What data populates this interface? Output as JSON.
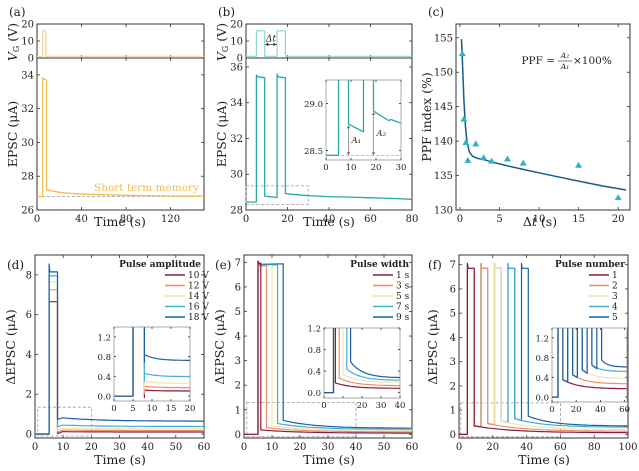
{
  "figure": {
    "colors": {
      "orange": "#F2BD54",
      "orange_light": "#F7D59A",
      "teal": "#2CA7A7",
      "teal_light": "#8FD6D4",
      "navy": "#1B5A86",
      "cyan_marker": "#29B6C8",
      "dash": "#9A9A9A",
      "frame": "#333333",
      "s10": "#8E1B3A",
      "s12": "#E9916C",
      "s14": "#F4E3AE",
      "s16": "#43AEDC",
      "s18": "#1D5F9E"
    }
  },
  "chart_data": [
    {
      "panel": "(a)",
      "type": "line",
      "title": "",
      "xlabel": "Time (s)",
      "xlim": [
        0,
        150
      ],
      "xticks": [
        0,
        40,
        80,
        120
      ],
      "top": {
        "ylabel": "V_G (V)",
        "ylim": [
          0,
          20
        ],
        "yticks": [
          0,
          10,
          20
        ],
        "series": [
          {
            "name": "V_G",
            "x": [
              0,
              5,
              5,
              8,
              8,
              150
            ],
            "y": [
              1,
              1,
              16,
              16,
              1,
              1
            ]
          }
        ]
      },
      "bottom": {
        "ylabel": "EPSC (μA)",
        "ylim": [
          26,
          35
        ],
        "yticks": [
          26,
          28,
          30,
          32,
          34
        ],
        "series": [
          {
            "name": "EPSC",
            "x": [
              0,
              5,
              5,
              5.6,
              8.5,
              8.5,
              12,
              20,
              30,
              45,
              60,
              80,
              100,
              120,
              150
            ],
            "y": [
              26.8,
              26.8,
              33.85,
              33.75,
              33.7,
              27.2,
              27.15,
              27.05,
              26.98,
              26.93,
              26.9,
              26.87,
              26.85,
              26.83,
              26.82
            ]
          }
        ],
        "baseline": 26.8,
        "annotation": "Short term memory"
      }
    },
    {
      "panel": "(b)",
      "type": "line",
      "xlabel": "Time (s)",
      "xlim": [
        0,
        80
      ],
      "xticks": [
        0,
        20,
        40,
        60,
        80
      ],
      "top": {
        "ylabel": "V_G (V)",
        "ylim": [
          0,
          20
        ],
        "yticks": [
          0,
          10,
          20
        ],
        "annotation": "Δt",
        "series": [
          {
            "name": "V_G",
            "x": [
              0,
              5,
              5,
              9,
              9,
              15,
              15,
              19,
              19,
              80
            ],
            "y": [
              1,
              1,
              16,
              16,
              1,
              1,
              16,
              16,
              1,
              1
            ]
          }
        ]
      },
      "bottom": {
        "ylabel": "EPSC (μA)",
        "ylim": [
          28,
          36.5
        ],
        "yticks": [
          28,
          30,
          32,
          34,
          36
        ],
        "series": [
          {
            "name": "EPSC",
            "x": [
              0,
              5,
              5,
              5.5,
              9,
              9,
              12,
              15,
              15,
              15.5,
              19,
              19,
              22,
              30,
              40,
              50,
              60,
              70,
              80
            ],
            "y": [
              28.45,
              28.45,
              35.55,
              35.45,
              35.4,
              28.78,
              28.74,
              28.7,
              35.6,
              35.45,
              35.4,
              28.92,
              28.88,
              28.8,
              28.75,
              28.72,
              28.68,
              28.65,
              28.6
            ]
          }
        ],
        "zoom_box": {
          "x": [
            0,
            30
          ],
          "y": [
            28.3,
            29.35
          ]
        }
      },
      "inset": {
        "xlim": [
          0,
          30
        ],
        "ylim": [
          28.4,
          29.25
        ],
        "xticks": [
          0,
          10,
          20,
          30
        ],
        "yticks": [
          28.5,
          29.0
        ],
        "ytick_labels": [
          "28.5",
          "29.0"
        ],
        "labels": [
          "A₁",
          "A₂"
        ],
        "series": [
          {
            "name": "EPSC",
            "x": [
              0,
              5,
              5,
              9,
              9,
              12,
              15,
              15,
              19,
              19,
              22,
              25,
              26,
              30
            ],
            "y": [
              28.45,
              28.45,
              29.3,
              29.3,
              28.78,
              28.74,
              28.7,
              29.3,
              29.3,
              28.92,
              28.87,
              28.82,
              28.83,
              28.79
            ]
          }
        ],
        "baseline": 28.45
      }
    },
    {
      "panel": "(c)",
      "type": "scatter",
      "xlabel": "Δt (s)",
      "ylabel": "PPF index (%)",
      "xlim": [
        -0.5,
        21.5
      ],
      "ylim": [
        130,
        157
      ],
      "xticks": [
        0,
        5,
        10,
        15,
        20
      ],
      "yticks": [
        130,
        135,
        140,
        145,
        150,
        155
      ],
      "annotation": "PPF = A₂/A₁ × 100%",
      "points": {
        "x": [
          0.3,
          0.5,
          0.75,
          1,
          2,
          3,
          4,
          6,
          8,
          15,
          20
        ],
        "y": [
          152.7,
          143.2,
          139.8,
          137.2,
          139.6,
          137.6,
          137.1,
          137.4,
          136.8,
          136.5,
          131.8
        ]
      },
      "fit": {
        "x": [
          0.2,
          0.35,
          0.5,
          0.7,
          0.9,
          1.2,
          1.6,
          2.2,
          3,
          4,
          6,
          8,
          10,
          12,
          15,
          18,
          21
        ],
        "y": [
          154.8,
          150.5,
          146.0,
          142.0,
          139.8,
          138.4,
          137.8,
          137.5,
          137.3,
          137.0,
          136.4,
          135.9,
          135.4,
          134.9,
          134.2,
          133.5,
          132.9
        ]
      }
    },
    {
      "panel": "(d)",
      "type": "line",
      "xlabel": "Time (s)",
      "ylabel": "ΔEPSC (μA)",
      "xlim": [
        0,
        60
      ],
      "ylim": [
        -0.2,
        9
      ],
      "xticks": [
        0,
        10,
        20,
        30,
        40,
        50,
        60
      ],
      "yticks": [
        0,
        2,
        4,
        6,
        8
      ],
      "legend": {
        "title": "Pulse amplitude",
        "position": "top-right"
      },
      "zoom_box": {
        "x": [
          1,
          20
        ],
        "y": [
          -0.1,
          1.35
        ]
      },
      "series": [
        {
          "name": "10 V",
          "peak": 6.65,
          "rest": 0.12,
          "end": 0.1
        },
        {
          "name": "12 V",
          "peak": 7.25,
          "rest": 0.2,
          "end": 0.17
        },
        {
          "name": "14 V",
          "peak": 7.65,
          "rest": 0.3,
          "end": 0.25
        },
        {
          "name": "16 V",
          "peak": 7.95,
          "rest": 0.46,
          "end": 0.38
        },
        {
          "name": "18 V",
          "peak": 8.15,
          "rest": 0.84,
          "end": 0.65
        }
      ],
      "pulse": {
        "start": 5,
        "end": 8
      },
      "inset": {
        "xlim": [
          0,
          20
        ],
        "ylim": [
          -0.1,
          1.4
        ],
        "xticks": [
          0,
          5,
          10,
          15,
          20
        ],
        "yticks": [
          0.0,
          0.4,
          0.8,
          1.2
        ],
        "ytick_labels": [
          "0.0",
          "0.4",
          "0.8",
          "1.2"
        ]
      }
    },
    {
      "panel": "(e)",
      "type": "line",
      "xlabel": "Time (s)",
      "ylabel": "ΔEPSC (μA)",
      "xlim": [
        0,
        60
      ],
      "ylim": [
        -0.15,
        7.3
      ],
      "xticks": [
        0,
        10,
        20,
        30,
        40,
        50,
        60
      ],
      "yticks": [
        0,
        1,
        2,
        3,
        4,
        5,
        6,
        7
      ],
      "legend": {
        "title": "Pulse width",
        "position": "top-right"
      },
      "zoom_box": {
        "x": [
          1,
          40
        ],
        "y": [
          -0.1,
          1.3
        ]
      },
      "series": [
        {
          "name": "1 s",
          "width": 1,
          "peak": 6.95,
          "rest": 0.18,
          "end": 0.05
        },
        {
          "name": "3 s",
          "width": 3,
          "peak": 6.85,
          "rest": 0.27,
          "end": 0.1
        },
        {
          "name": "5 s",
          "width": 5,
          "peak": 6.85,
          "rest": 0.34,
          "end": 0.16
        },
        {
          "name": "7 s",
          "width": 7,
          "peak": 6.88,
          "rest": 0.44,
          "end": 0.2
        },
        {
          "name": "9 s",
          "width": 9,
          "peak": 6.92,
          "rest": 0.57,
          "end": 0.25
        }
      ],
      "pulse_start": 5,
      "inset": {
        "xlim": [
          0,
          40
        ],
        "ylim": [
          -0.1,
          1.2
        ],
        "xticks": [
          0,
          10,
          20,
          30,
          40
        ],
        "xtick_labels": [
          "0",
          "",
          "20",
          "30",
          "40"
        ],
        "yticks": [
          0.0,
          0.4,
          0.8,
          1.2
        ],
        "ytick_labels": [
          "0.0",
          "0.4",
          "0.8",
          "1.2"
        ]
      }
    },
    {
      "panel": "(f)",
      "type": "line",
      "xlabel": "Time (s)",
      "ylabel": "ΔEPSC (μA)",
      "xlim": [
        0,
        100
      ],
      "ylim": [
        -0.15,
        7.4
      ],
      "xticks": [
        0,
        20,
        40,
        60,
        80,
        100
      ],
      "yticks": [
        0,
        1,
        2,
        3,
        4,
        5,
        6,
        7
      ],
      "legend": {
        "title": "Pulse number",
        "position": "top-right"
      },
      "zoom_box": {
        "x": [
          1,
          60
        ],
        "y": [
          -0.1,
          1.3
        ]
      },
      "series": [
        {
          "name": "1",
          "n": 1,
          "rest": 0.35,
          "end": 0.07
        },
        {
          "name": "2",
          "n": 2,
          "rest": 0.45,
          "end": 0.13
        },
        {
          "name": "3",
          "n": 3,
          "rest": 0.55,
          "end": 0.2
        },
        {
          "name": "4",
          "n": 4,
          "rest": 0.65,
          "end": 0.3
        },
        {
          "name": "5",
          "n": 5,
          "rest": 0.75,
          "end": 0.35
        }
      ],
      "pulse_starts": [
        5,
        13,
        21,
        29,
        37
      ],
      "pulse_width": 4,
      "peak": 6.85,
      "inset": {
        "xlim": [
          0,
          62
        ],
        "ylim": [
          -0.1,
          1.4
        ],
        "xticks": [
          0,
          20,
          40,
          60
        ],
        "yticks": [
          0.0,
          0.4,
          0.8,
          1.2
        ],
        "ytick_labels": [
          "0.0",
          "0.4",
          "0.8",
          "1.2"
        ]
      }
    }
  ],
  "panel_labels": [
    "(a)",
    "(b)",
    "(c)",
    "(d)",
    "(e)",
    "(f)"
  ],
  "axis_labels": {
    "vg": "V",
    "vg_sub": "G",
    "vg_unit": " (V)",
    "epsc": "EPSC (μA)",
    "depsc": "ΔEPSC (μA)",
    "time": "Time (s)",
    "dt": "Δt (s)",
    "ppf": "PPF index (%)"
  }
}
